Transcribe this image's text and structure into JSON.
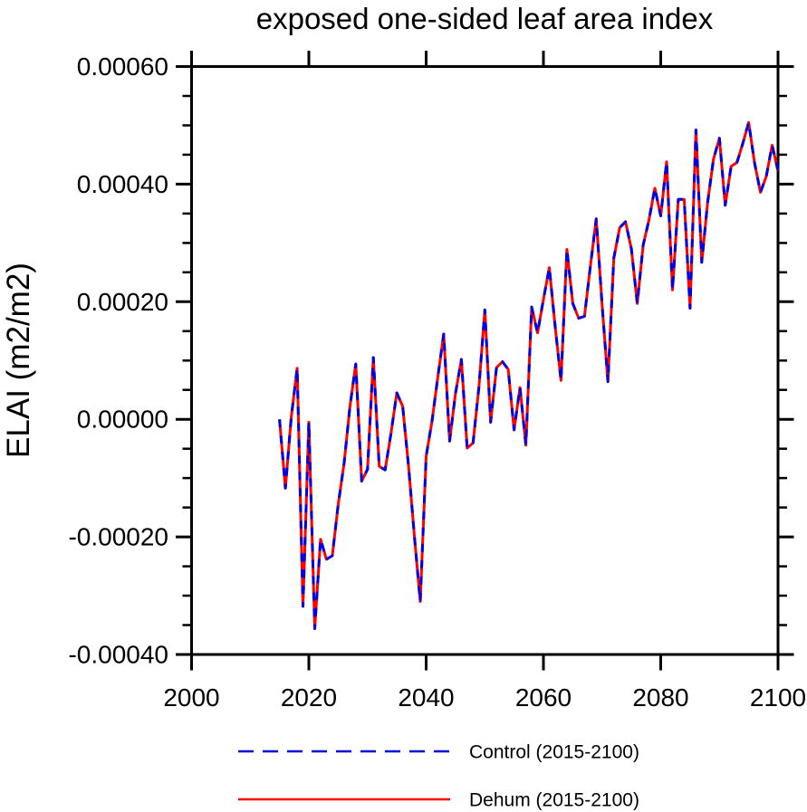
{
  "chart_data": {
    "type": "line",
    "title": "exposed one-sided leaf area index",
    "ylabel": "ELAI  (m2/m2)",
    "xlabel": "",
    "xlim": [
      2000,
      2100
    ],
    "ylim": [
      -0.0004,
      0.0006
    ],
    "grid": false,
    "legend_position": "below-plot",
    "axis_color": "#000000",
    "background_color": "#ffffff",
    "x_tick_labels": [
      "2000",
      "2020",
      "2040",
      "2060",
      "2080",
      "2100"
    ],
    "x_ticks": [
      2000,
      2020,
      2040,
      2060,
      2080,
      2100
    ],
    "y_tick_labels": [
      "0.00060",
      "0.00040",
      "0.00020",
      "0.00000",
      "-0.00020",
      "-0.00040"
    ],
    "y_ticks": [
      0.0006,
      0.0004,
      0.0002,
      0.0,
      -0.0002,
      -0.0004
    ],
    "y_minor_step": 5e-05,
    "years": [
      2015,
      2016,
      2017,
      2018,
      2019,
      2020,
      2021,
      2022,
      2023,
      2024,
      2025,
      2026,
      2027,
      2028,
      2029,
      2030,
      2031,
      2032,
      2033,
      2034,
      2035,
      2036,
      2037,
      2038,
      2039,
      2040,
      2041,
      2042,
      2043,
      2044,
      2045,
      2046,
      2047,
      2048,
      2049,
      2050,
      2051,
      2052,
      2053,
      2054,
      2055,
      2056,
      2057,
      2058,
      2059,
      2060,
      2061,
      2062,
      2063,
      2064,
      2065,
      2066,
      2067,
      2068,
      2069,
      2070,
      2071,
      2072,
      2073,
      2074,
      2075,
      2076,
      2077,
      2078,
      2079,
      2080,
      2081,
      2082,
      2083,
      2084,
      2085,
      2086,
      2087,
      2088,
      2089,
      2090,
      2091,
      2092,
      2093,
      2094,
      2095,
      2096,
      2097,
      2098,
      2099,
      2100
    ],
    "series": [
      {
        "name": "Control (2015-2100)",
        "color": "#0000e0",
        "line_style": "dashed",
        "values": [
          0.0,
          -0.000117,
          4e-06,
          8.7e-05,
          -0.000318,
          -5e-06,
          -0.000356,
          -0.000204,
          -0.000238,
          -0.000232,
          -0.000145,
          -7.5e-05,
          2.1e-05,
          9.4e-05,
          -0.000105,
          -8.5e-05,
          0.000105,
          -8e-05,
          -8.6e-05,
          -2.5e-05,
          4.5e-05,
          2.2e-05,
          -8e-05,
          -0.0002,
          -0.00031,
          -6.3e-05,
          -3e-06,
          7.2e-05,
          0.000145,
          -3.7e-05,
          4.4e-05,
          0.000102,
          -4.9e-05,
          -4e-05,
          5.5e-05,
          0.000186,
          -5e-06,
          8.8e-05,
          9.8e-05,
          8.5e-05,
          -1.8e-05,
          5.4e-05,
          -4.4e-05,
          0.000191,
          0.000147,
          0.000204,
          0.000258,
          0.000157,
          6.6e-05,
          0.000289,
          0.000197,
          0.000172,
          0.000175,
          0.00026,
          0.000341,
          0.000194,
          6.4e-05,
          0.000274,
          0.000326,
          0.000336,
          0.00029,
          0.000197,
          0.000296,
          0.000339,
          0.000393,
          0.000346,
          0.000438,
          0.00022,
          0.000374,
          0.000374,
          0.000189,
          0.000492,
          0.000267,
          0.000369,
          0.000443,
          0.000478,
          0.000364,
          0.00043,
          0.000437,
          0.000469,
          0.000505,
          0.000436,
          0.000386,
          0.000413,
          0.000466,
          0.000423
        ]
      },
      {
        "name": "Dehum (2015-2100)",
        "color": "#ff0000",
        "line_style": "solid",
        "values": [
          0.0,
          -0.000117,
          4e-06,
          8.7e-05,
          -0.000318,
          -5e-06,
          -0.000356,
          -0.000204,
          -0.000238,
          -0.000232,
          -0.000145,
          -7.5e-05,
          2.1e-05,
          9.4e-05,
          -0.000105,
          -8.5e-05,
          0.000105,
          -8e-05,
          -8.6e-05,
          -2.5e-05,
          4.5e-05,
          2.2e-05,
          -8e-05,
          -0.0002,
          -0.00031,
          -6.3e-05,
          -3e-06,
          7.2e-05,
          0.000145,
          -3.7e-05,
          4.4e-05,
          0.000102,
          -4.9e-05,
          -4e-05,
          5.5e-05,
          0.000186,
          -5e-06,
          8.8e-05,
          9.8e-05,
          8.5e-05,
          -1.8e-05,
          5.4e-05,
          -4.4e-05,
          0.000191,
          0.000147,
          0.000204,
          0.000258,
          0.000157,
          6.6e-05,
          0.000289,
          0.000197,
          0.000172,
          0.000175,
          0.00026,
          0.000341,
          0.000194,
          6.4e-05,
          0.000274,
          0.000326,
          0.000336,
          0.00029,
          0.000197,
          0.000296,
          0.000339,
          0.000393,
          0.000346,
          0.000438,
          0.00022,
          0.000374,
          0.000374,
          0.000189,
          0.000492,
          0.000267,
          0.000369,
          0.000443,
          0.000478,
          0.000364,
          0.00043,
          0.000437,
          0.000469,
          0.000505,
          0.000436,
          0.000386,
          0.000413,
          0.000466,
          0.000423
        ]
      }
    ]
  }
}
